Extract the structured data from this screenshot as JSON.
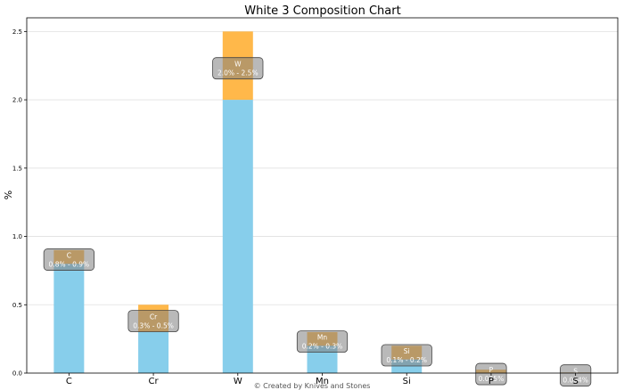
{
  "chart_data": {
    "type": "bar",
    "title": "White 3 Composition Chart",
    "xlabel": "",
    "ylabel": "%",
    "ylim": [
      0,
      2.6
    ],
    "yticks": [
      "0.0",
      "0.5",
      "1.0",
      "1.5",
      "2.0",
      "2.5"
    ],
    "grid": "horizontal",
    "categories": [
      "C",
      "Cr",
      "W",
      "Mn",
      "Si",
      "P",
      "S"
    ],
    "series": [
      {
        "values": [
          0.8,
          0.3,
          2.0,
          0.2,
          0.1,
          0.0,
          0.0
        ],
        "color": "#87CEEB"
      },
      {
        "values": [
          0.1,
          0.2,
          0.5,
          0.1,
          0.1,
          0.025,
          0.004
        ],
        "color": "#FFB84A"
      }
    ],
    "bar_labels": [
      {
        "element": "C",
        "range": "0.8% - 0.9%"
      },
      {
        "element": "Cr",
        "range": "0.3% - 0.5%"
      },
      {
        "element": "W",
        "range": "2.0% - 2.5%"
      },
      {
        "element": "Mn",
        "range": "0.2% - 0.3%"
      },
      {
        "element": "Si",
        "range": "0.1% - 0.2%"
      },
      {
        "element": "P",
        "range": "0.025%"
      },
      {
        "element": "S",
        "range": "0.004%"
      }
    ],
    "credit": "© Created by Knives and Stones"
  }
}
